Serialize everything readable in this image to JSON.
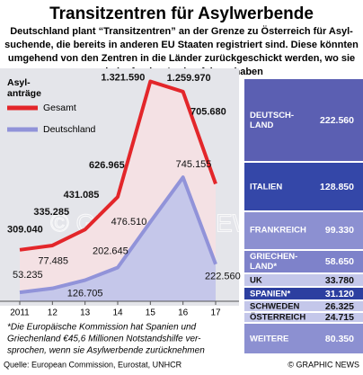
{
  "title": "Transitzentren für Asylwerbende",
  "subtitle": [
    "Deutschland plant “Transitzentren” an der Grenze zu Österreich für Asyl-",
    "suchende, die bereits in anderen EU Staaten registriert sind.  Diese könnten",
    "umgehend von den Zentren in die Länder zurückgeschickt werden, wo sie",
    "ein laufendes Asylverfahren haben"
  ],
  "footnote": [
    "*Die Europäische Kommission hat Spanien und",
    "Griechenland €45,6 Millionen Notstandshilfe ver-",
    "sprochen, wenn sie Asylwerbende zurücknehmen"
  ],
  "source": "Quelle: European Commission, Eurostat, UNHCR",
  "credit": "© GRAPHIC NEWS",
  "chart_data": [
    {
      "type": "line",
      "y_label": [
        "Asyl-",
        "anträge"
      ],
      "categories": [
        "2011",
        "12",
        "13",
        "14",
        "15",
        "16",
        "17"
      ],
      "ylim": [
        0,
        1400000
      ],
      "series": [
        {
          "name": "Gesamt",
          "color": "#e3262a",
          "fill": "#f4e1e4",
          "values": [
            309040,
            335285,
            431085,
            626965,
            1321590,
            1259970,
            705680
          ],
          "value_labels": [
            "309.040",
            "335.285",
            "431.085",
            "626.965",
            "1.321.590",
            "1.259.970",
            "705.680"
          ]
        },
        {
          "name": "Deutschland",
          "color": "#9193d9",
          "fill": "#c5c7ea",
          "values": [
            53235,
            77485,
            126705,
            202645,
            476510,
            745155,
            222560
          ],
          "value_labels": [
            "53.235",
            "77.485",
            "126.705",
            "202.645",
            "476.510",
            "745.155",
            "222.560"
          ]
        }
      ]
    },
    {
      "type": "stack",
      "categories": [
        "DEUTSCH-\nLAND",
        "ITALIEN",
        "FRANKREICH",
        "GRIECHEN-\nLAND*",
        "UK",
        "SPANIEN*",
        "SCHWEDEN",
        "ÖSTERREICH",
        "WEITERE"
      ],
      "values": [
        222560,
        128850,
        99330,
        58650,
        33780,
        31120,
        26325,
        24715,
        80350
      ],
      "value_labels": [
        "222.560",
        "128.850",
        "99.330",
        "58.650",
        "33.780",
        "31.120",
        "26.325",
        "24.715",
        "80.350"
      ],
      "colors": [
        "#5b5fb2",
        "#3447a8",
        "#8c90d1",
        "#7e82ca",
        "#c4c7ea",
        "#2c3fa0",
        "#c4c7ea",
        "#c4c7ea",
        "#8c90d1"
      ]
    }
  ]
}
